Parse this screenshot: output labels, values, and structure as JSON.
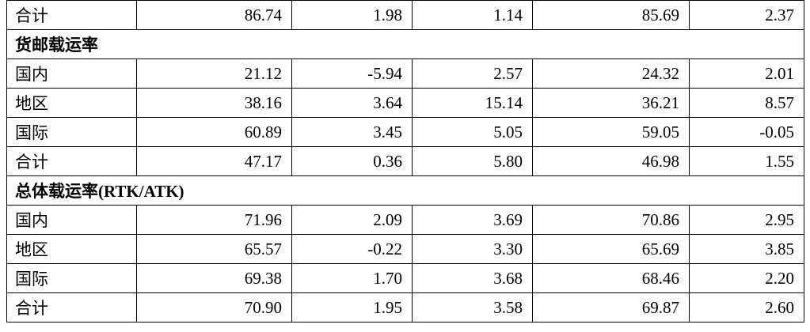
{
  "table": {
    "rows": [
      {
        "label": "合计",
        "values": [
          "86.74",
          "1.98",
          "1.14",
          "85.69",
          "2.37"
        ]
      },
      {
        "section": "货邮载运率"
      },
      {
        "label": "国内",
        "values": [
          "21.12",
          "-5.94",
          "2.57",
          "24.32",
          "2.01"
        ]
      },
      {
        "label": "地区",
        "values": [
          "38.16",
          "3.64",
          "15.14",
          "36.21",
          "8.57"
        ]
      },
      {
        "label": "国际",
        "values": [
          "60.89",
          "3.45",
          "5.05",
          "59.05",
          "-0.05"
        ]
      },
      {
        "label": "合计",
        "values": [
          "47.17",
          "0.36",
          "5.80",
          "46.98",
          "1.55"
        ]
      },
      {
        "section": "总体载运率(RTK/ATK)"
      },
      {
        "label": "国内",
        "values": [
          "71.96",
          "2.09",
          "3.69",
          "70.86",
          "2.95"
        ]
      },
      {
        "label": "地区",
        "values": [
          "65.57",
          "-0.22",
          "3.30",
          "65.69",
          "3.85"
        ]
      },
      {
        "label": "国际",
        "values": [
          "69.38",
          "1.70",
          "3.68",
          "68.46",
          "2.20"
        ]
      },
      {
        "label": "合计",
        "values": [
          "70.90",
          "1.95",
          "3.58",
          "69.87",
          "2.60"
        ]
      }
    ]
  }
}
